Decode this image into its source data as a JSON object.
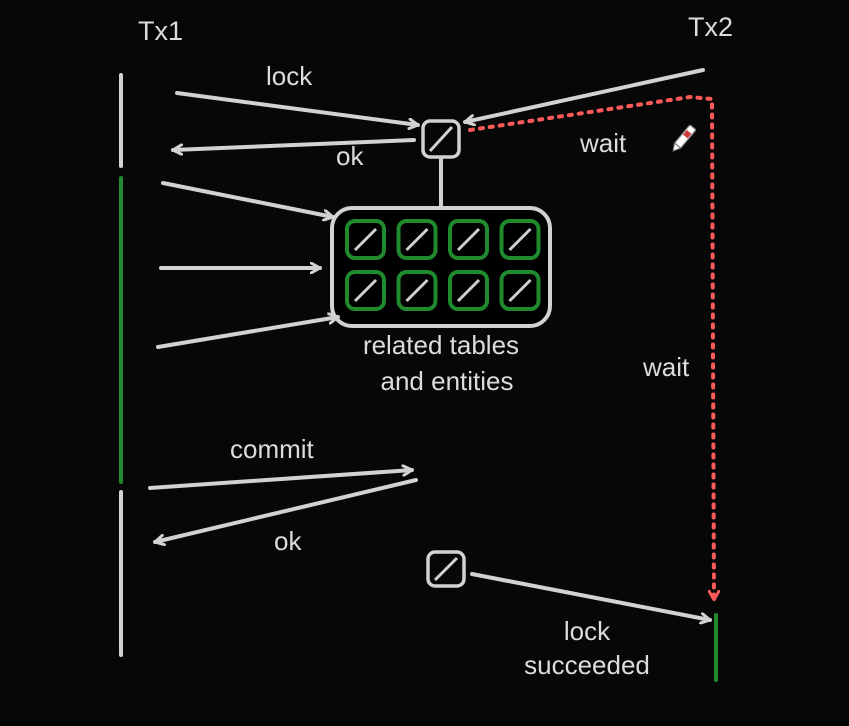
{
  "colors": {
    "background": "#070707",
    "line": "#d2d2d2",
    "green": "#1f8a2e",
    "wait_red": "#ff5a5a"
  },
  "labels": {
    "tx1": "Tx1",
    "tx2": "Tx2",
    "lock": "lock",
    "ok_first": "ok",
    "wait_top": "wait",
    "wait_side": "wait",
    "related_line1": "related tables",
    "related_line2": "and entities",
    "commit": "commit",
    "ok_second": "ok",
    "lock_succeeded_line1": "lock",
    "lock_succeeded_line2": "succeeded"
  },
  "icons": {
    "lock_square": "lock-square-icon",
    "entity_square": "entity-square-icon",
    "cursor": "pencil-cursor-icon"
  },
  "entity_grid": {
    "rows": 2,
    "cols": 4
  }
}
